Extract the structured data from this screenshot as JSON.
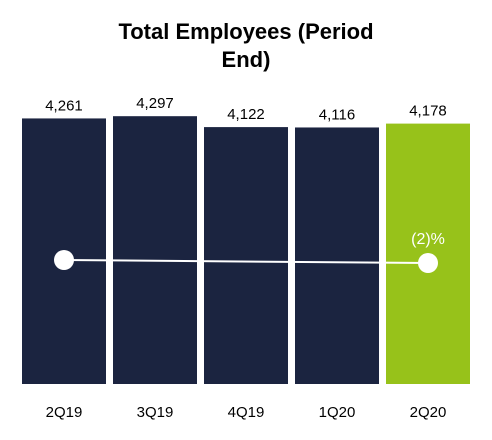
{
  "chart_data": {
    "type": "bar",
    "title_lines": [
      "Total Employees (Period",
      "End)"
    ],
    "categories": [
      "2Q19",
      "3Q19",
      "4Q19",
      "1Q20",
      "2Q20"
    ],
    "values": [
      4261,
      4297,
      4122,
      4116,
      4178
    ],
    "value_labels": [
      "4,261",
      "4,297",
      "4,122",
      "4,116",
      "4,178"
    ],
    "ylim": [
      0,
      4300
    ],
    "grid": false,
    "legend": "none",
    "colors": {
      "bar": "#1b2440",
      "highlight_bar": "#97c21a",
      "line": "#ffffff"
    },
    "highlight_index": 4,
    "overlay_line": {
      "from_index": 0,
      "to_index": 4,
      "annotation": "(2)%"
    }
  }
}
